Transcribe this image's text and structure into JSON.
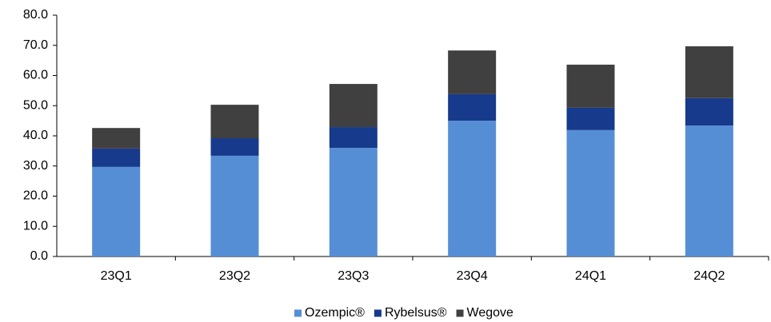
{
  "chart_data": {
    "type": "stacked_bar",
    "categories": [
      "23Q1",
      "23Q2",
      "23Q3",
      "23Q4",
      "24Q1",
      "24Q2"
    ],
    "series": [
      {
        "name": "Ozempic®",
        "color": "#558ed5",
        "values": [
          29.7,
          33.4,
          36.0,
          45.0,
          41.9,
          43.4
        ]
      },
      {
        "name": "Rybelsus®",
        "color": "#173a8c",
        "values": [
          6.1,
          5.8,
          6.9,
          8.8,
          7.4,
          9.1
        ]
      },
      {
        "name": "Wegove",
        "color": "#404040",
        "values": [
          6.8,
          11.1,
          14.3,
          14.5,
          14.3,
          17.2
        ]
      }
    ],
    "ylim": [
      0,
      80
    ],
    "yticks": [
      {
        "value": 0,
        "label": "0.0"
      },
      {
        "value": 10,
        "label": "10.0"
      },
      {
        "value": 20,
        "label": "20.0"
      },
      {
        "value": 30,
        "label": "30.0"
      },
      {
        "value": 40,
        "label": "40.0"
      },
      {
        "value": 50,
        "label": "50.0"
      },
      {
        "value": 60,
        "label": "60.0"
      },
      {
        "value": 70,
        "label": "70.0"
      },
      {
        "value": 80,
        "label": "80.0"
      }
    ],
    "legend": "bottom",
    "grid": false
  }
}
